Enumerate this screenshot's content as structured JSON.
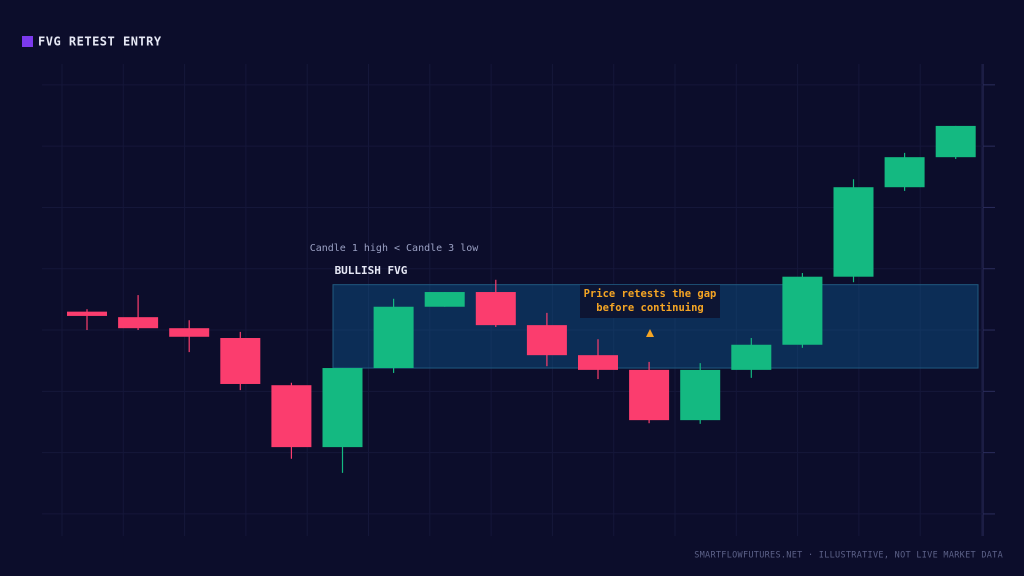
{
  "chart_data": {
    "type": "candlestick",
    "title": "FVG RETEST ENTRY",
    "title_marker_color": "#7c3aed",
    "open": [
      43.0,
      42.1,
      40.3,
      38.7,
      31.0,
      20.9,
      33.8,
      43.8,
      46.2,
      40.8,
      35.9,
      33.5,
      25.3,
      33.5,
      37.6,
      48.7,
      63.3,
      68.2
    ],
    "high": [
      43.4,
      45.7,
      41.6,
      39.7,
      31.4,
      33.8,
      45.1,
      46.2,
      48.2,
      42.8,
      38.5,
      34.8,
      34.6,
      38.7,
      49.3,
      64.6,
      68.9,
      73.3
    ],
    "low": [
      40.0,
      40.0,
      36.4,
      30.2,
      19.0,
      16.7,
      33.0,
      43.8,
      40.5,
      34.1,
      32.0,
      24.8,
      24.7,
      32.2,
      37.1,
      47.8,
      62.7,
      67.9
    ],
    "close": [
      42.3,
      40.3,
      38.9,
      31.2,
      20.9,
      33.8,
      43.8,
      46.2,
      40.8,
      35.9,
      33.5,
      25.3,
      33.5,
      37.6,
      48.7,
      63.3,
      68.2,
      73.3
    ],
    "up_color": "#14b981",
    "down_color": "#fb3d6e",
    "ylim": [
      6.4,
      83.4
    ],
    "yticks": [
      10,
      20,
      30,
      40,
      50,
      60,
      70,
      80
    ],
    "grid": true,
    "fvg_zone": {
      "high": 47.4,
      "low": 33.8
    },
    "annotations": {
      "rule": "Candle 1 high < Candle 3 low",
      "label": "BULLISH FVG",
      "callout_line1": "Price retests the gap",
      "callout_line2": "before continuing"
    },
    "footer": "SMARTFLOWFUTURES.NET · ILLUSTRATIVE, NOT LIVE MARKET DATA"
  }
}
